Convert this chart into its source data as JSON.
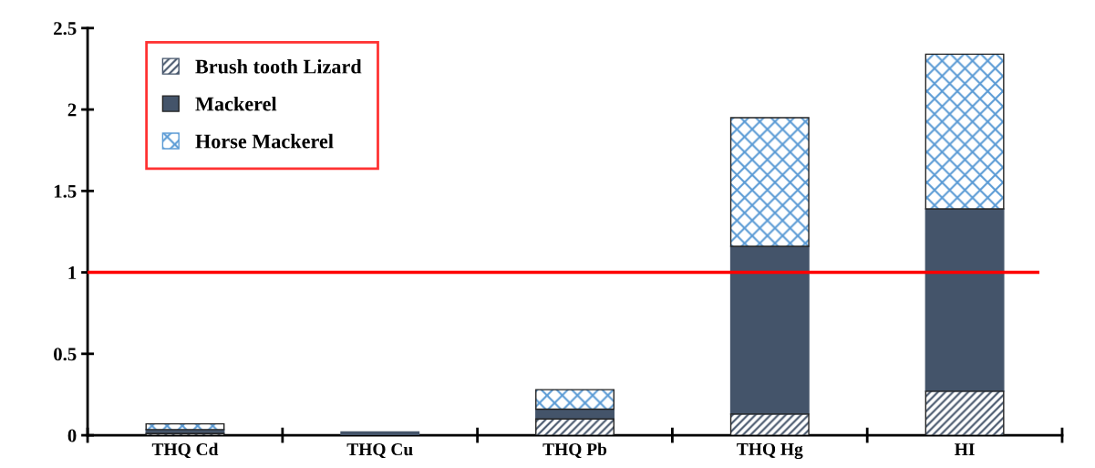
{
  "chart_data": {
    "type": "bar",
    "stacked": true,
    "categories": [
      "THQ Cd",
      "THQ Cu",
      "THQ Pb",
      "THQ Hg",
      "HI"
    ],
    "series": [
      {
        "name": "Brush tooth Lizard",
        "color": "#44546a",
        "values": [
          0.01,
          0,
          0.1,
          0.13,
          0.27
        ]
      },
      {
        "name": "Mackerel",
        "color": "#44546a",
        "values": [
          0.025,
          0.02,
          0.06,
          1.03,
          1.12
        ]
      },
      {
        "name": "Horse Mackerel",
        "color": "#5b9bd5",
        "values": [
          0.035,
          0,
          0.12,
          0.79,
          0.95
        ]
      }
    ],
    "ylim": [
      0,
      2.5
    ],
    "yticks": [
      0,
      0.5,
      1,
      1.5,
      2,
      2.5
    ],
    "ref_lines": [
      {
        "axis": "y",
        "value": 1,
        "color": "#ff0000",
        "line_style": "solid"
      }
    ],
    "grid": false,
    "legend": "top left"
  }
}
